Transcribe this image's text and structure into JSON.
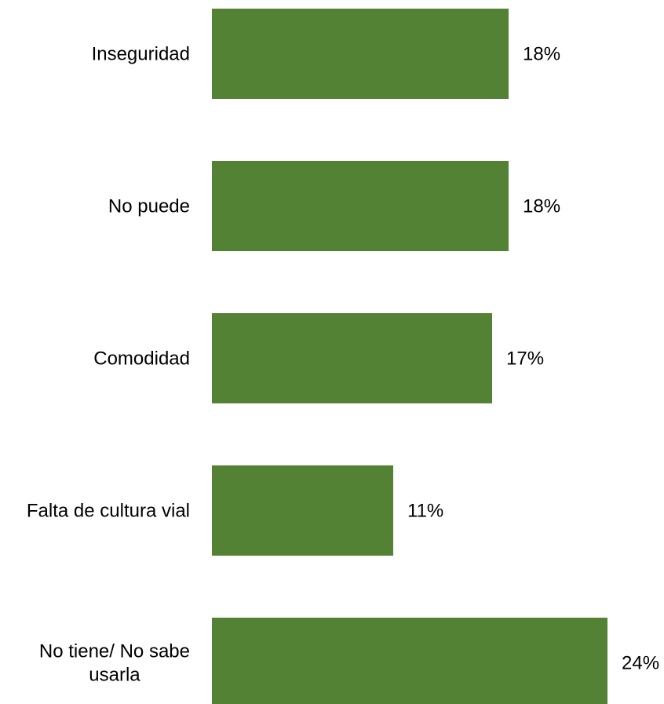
{
  "chart_data": {
    "type": "bar",
    "orientation": "horizontal",
    "categories": [
      [
        "Inseguridad"
      ],
      [
        "No puede"
      ],
      [
        "Comodidad"
      ],
      [
        "Falta de cultura vial"
      ],
      [
        "No tiene/ No sabe",
        "usarla"
      ]
    ],
    "values": [
      18,
      18,
      17,
      11,
      24
    ],
    "value_labels": [
      "18%",
      "18%",
      "17%",
      "11%",
      "24%"
    ],
    "unit": "%",
    "xlim": [
      0,
      24
    ],
    "title": "",
    "xlabel": "",
    "ylabel": "",
    "grid": false,
    "legend": "none",
    "bar_color": "#548235"
  }
}
